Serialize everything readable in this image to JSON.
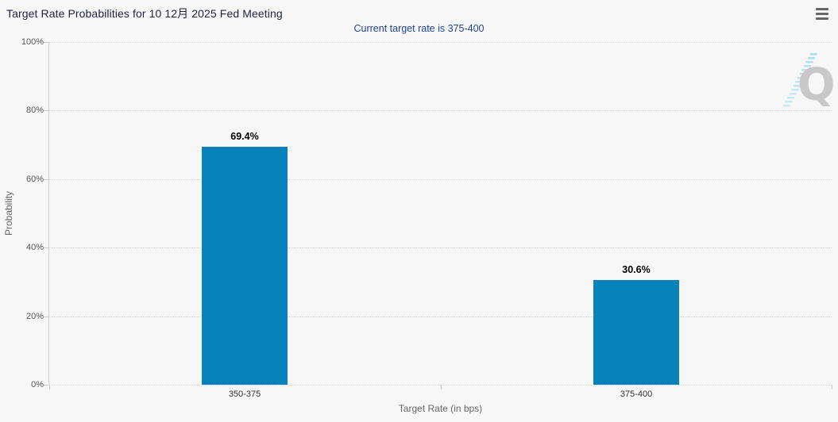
{
  "header": {
    "title": "Target Rate Probabilities for 10 12月 2025 Fed Meeting",
    "subtitle": "Current target rate is 375-400",
    "menu_icon": "hamburger-menu-icon"
  },
  "watermark": {
    "letter": "Q"
  },
  "colors": {
    "background": "#f7f7f7",
    "bar": "#0782ba",
    "title_text": "#1d2146",
    "subtitle_text": "#1f4596",
    "gridline": "#d2d6da",
    "axis_line": "#c9ced4",
    "watermark_q": "#c8c8c8",
    "watermark_dashes": "#a6dcef"
  },
  "chart_data": {
    "type": "bar",
    "title": "Target Rate Probabilities for 10 12月 2025 Fed Meeting",
    "subtitle": "Current target rate is 375-400",
    "categories": [
      "350-375",
      "375-400"
    ],
    "values": [
      69.4,
      30.6
    ],
    "value_labels": [
      "69.4%",
      "30.6%"
    ],
    "xlabel": "Target Rate (in bps)",
    "ylabel": "Probability",
    "ylim": [
      0,
      100
    ],
    "y_ticks": [
      "0%",
      "20%",
      "40%",
      "60%",
      "80%",
      "100%"
    ],
    "grid": "horizontal dotted gridlines at each 20%",
    "legend": "none",
    "bar_color": "#0782ba"
  }
}
